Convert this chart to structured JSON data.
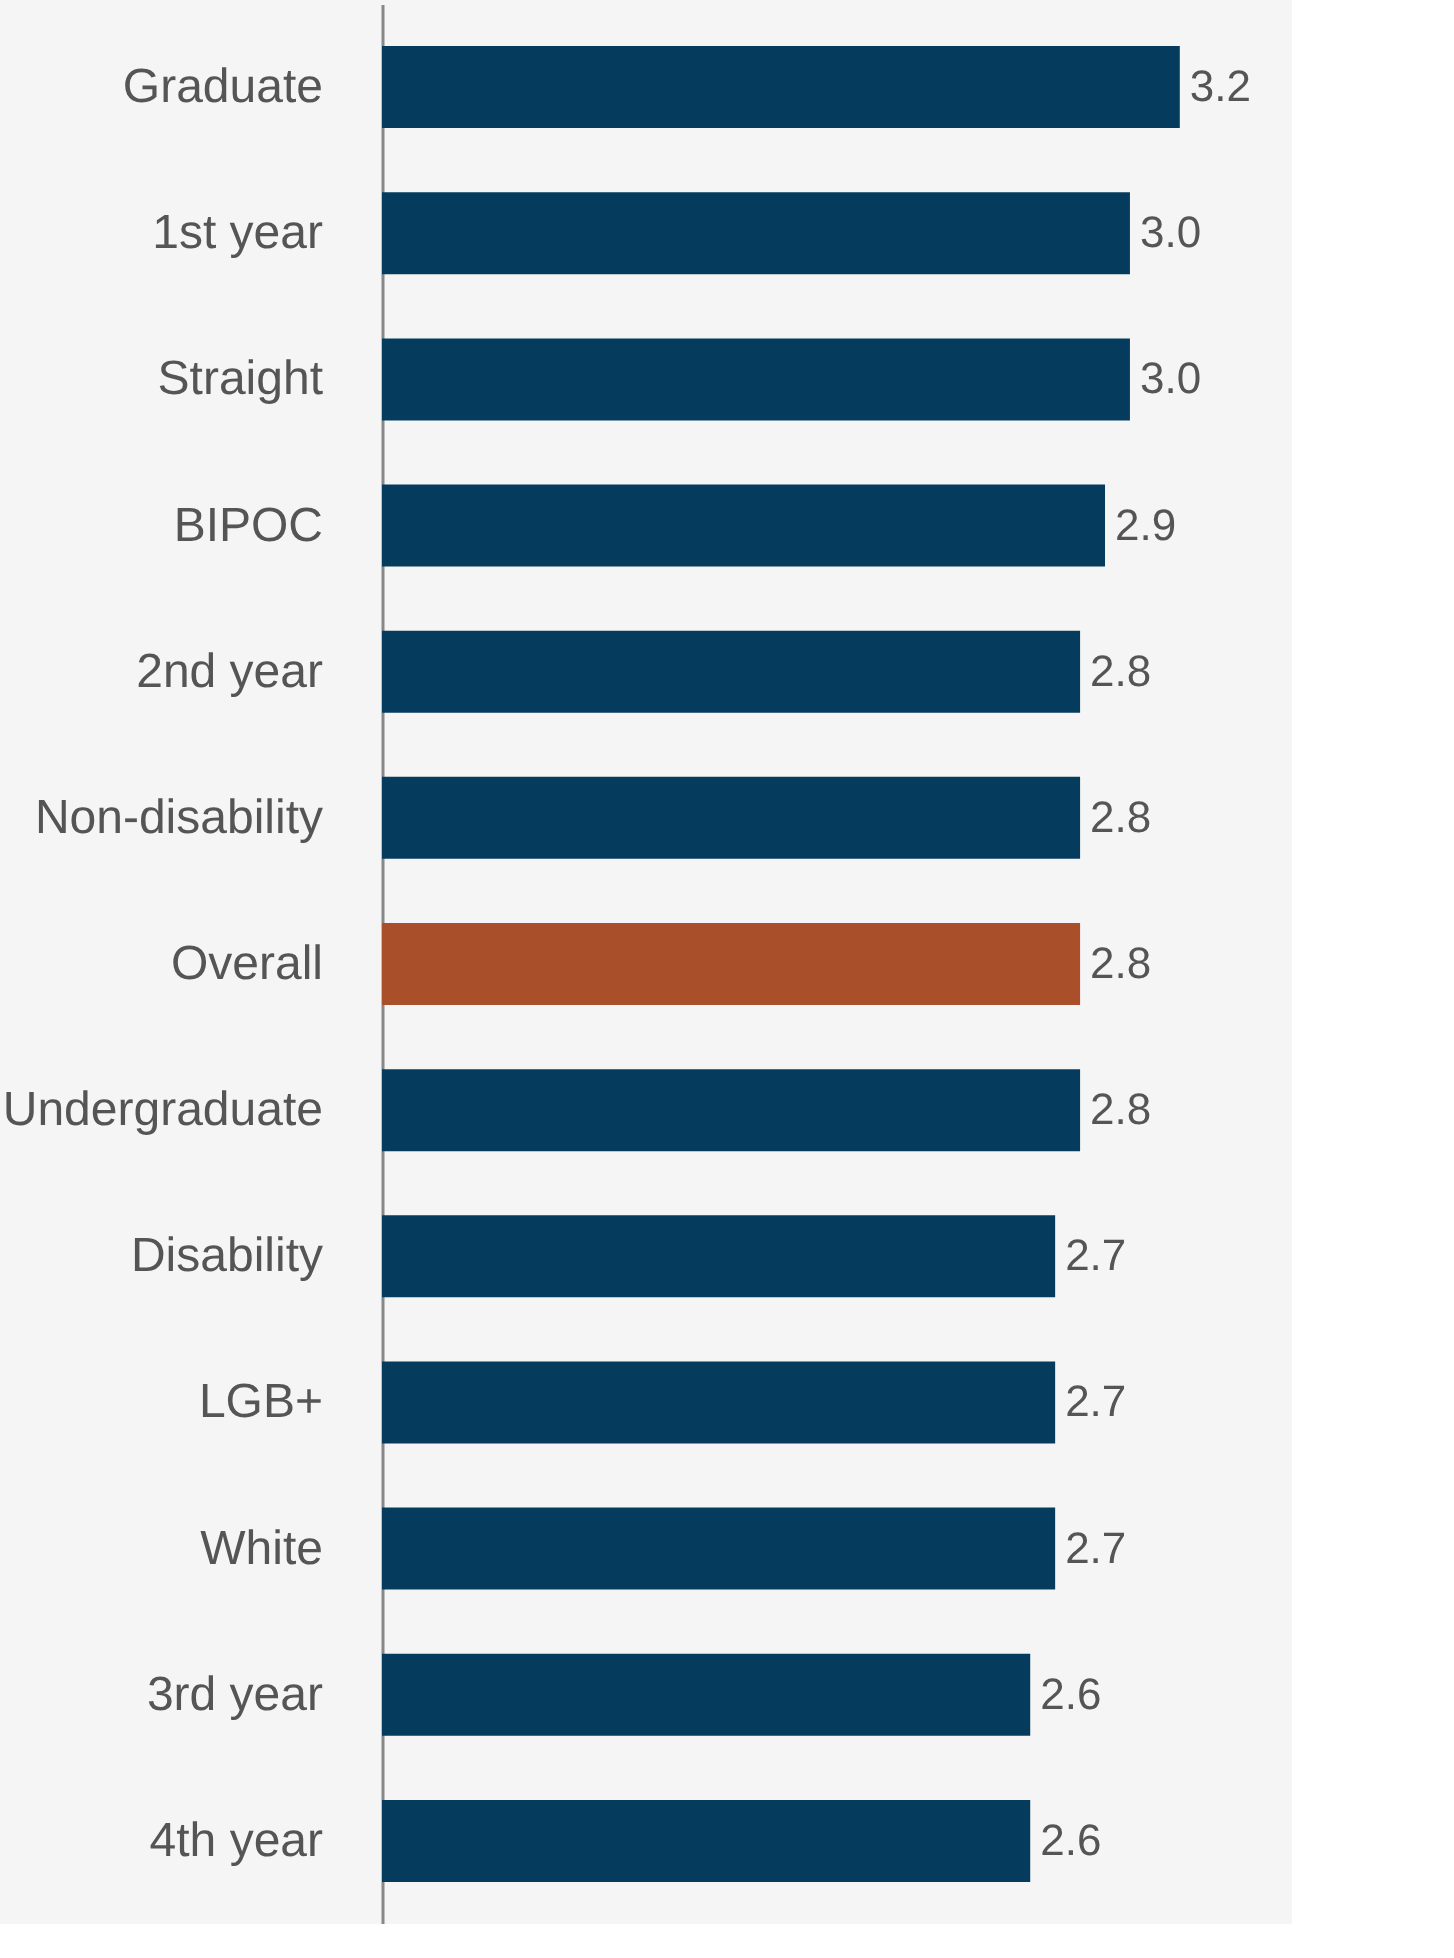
{
  "chart_data": {
    "type": "bar",
    "orientation": "horizontal",
    "categories": [
      "Graduate",
      "1st year",
      "Straight",
      "BIPOC",
      "2nd year",
      "Non-disability",
      "Overall",
      "Undergraduate",
      "Disability",
      "LGB+",
      "White",
      "3rd year",
      "4th year"
    ],
    "values": [
      3.2,
      3.0,
      3.0,
      2.9,
      2.8,
      2.8,
      2.8,
      2.8,
      2.7,
      2.7,
      2.7,
      2.6,
      2.6
    ],
    "colors": [
      "#053c5e",
      "#053c5e",
      "#053c5e",
      "#053c5e",
      "#053c5e",
      "#053c5e",
      "#a9502a",
      "#053c5e",
      "#053c5e",
      "#053c5e",
      "#053c5e",
      "#053c5e",
      "#053c5e"
    ],
    "xlim": [
      0,
      3.65
    ],
    "value_labels": [
      "3.2",
      "3.0",
      "3.0",
      "2.9",
      "2.8",
      "2.8",
      "2.8",
      "2.8",
      "2.7",
      "2.7",
      "2.7",
      "2.6",
      "2.6"
    ],
    "tick_labels": "y",
    "grid": false
  }
}
